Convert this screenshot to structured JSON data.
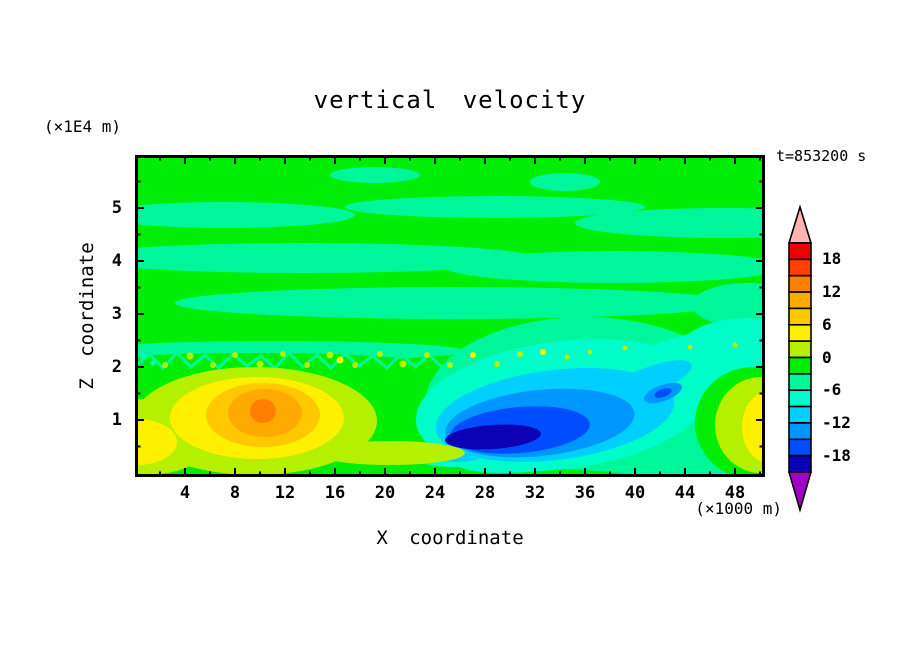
{
  "title": "vertical velocity",
  "annotations": {
    "z_axis_unit": "(×1E4 m)",
    "x_axis_unit": "(×1000 m)",
    "time_label": "t=853200 s"
  },
  "x_axis": {
    "label": "X coordinate",
    "tick_labels": [
      4,
      8,
      12,
      16,
      20,
      24,
      28,
      32,
      36,
      40,
      44,
      48
    ],
    "minor_tick_step": 2,
    "range": [
      0,
      50.4
    ]
  },
  "z_axis": {
    "label": "Z coordinate",
    "tick_labels": [
      5,
      4,
      3,
      2,
      1
    ],
    "minor_tick_step": 0.5,
    "range": [
      0,
      6.1
    ]
  },
  "colorbar": {
    "tick_labels": [
      "18",
      "12",
      "6",
      "0",
      "-6",
      "-12",
      "-18"
    ],
    "above_max_color": "#ffb4b4",
    "below_min_color": "#a000c8",
    "bands": [
      {
        "min": 18,
        "max": 21,
        "color": "#ee0000"
      },
      {
        "min": 15,
        "max": 18,
        "color": "#ff4000"
      },
      {
        "min": 12,
        "max": 15,
        "color": "#ff8000"
      },
      {
        "min": 9,
        "max": 12,
        "color": "#ffaa00"
      },
      {
        "min": 6,
        "max": 9,
        "color": "#ffc800"
      },
      {
        "min": 3,
        "max": 6,
        "color": "#fff000"
      },
      {
        "min": 0,
        "max": 3,
        "color": "#b4f000"
      },
      {
        "min": -3,
        "max": 0,
        "color": "#00ee05"
      },
      {
        "min": -6,
        "max": -3,
        "color": "#00f69b"
      },
      {
        "min": -9,
        "max": -6,
        "color": "#00fcc8"
      },
      {
        "min": -12,
        "max": -9,
        "color": "#00cfff"
      },
      {
        "min": -15,
        "max": -12,
        "color": "#0096ff"
      },
      {
        "min": -18,
        "max": -15,
        "color": "#004cff"
      },
      {
        "min": -21,
        "max": -18,
        "color": "#0c00b4"
      }
    ]
  },
  "chart_data": {
    "type": "heatmap",
    "title": "vertical velocity",
    "xlabel": "X coordinate (×1000 m)",
    "ylabel": "Z coordinate (×1E4 m)",
    "x_range": [
      0,
      50.4
    ],
    "z_range": [
      0,
      6.1
    ],
    "time_label": "t=853200 s",
    "contour_interval": 3,
    "levels": [
      -21,
      -18,
      -15,
      -12,
      -9,
      -6,
      -3,
      0,
      3,
      6,
      9,
      12,
      15,
      18,
      21
    ],
    "background": "mostly near-zero: green (-3..0) and spring-green (-6..-3) banded field",
    "features": [
      {
        "name": "updraft-core",
        "x_1000m": 10,
        "z_1e4m": 1.0,
        "peak_value": 14,
        "description": "nested warm contours: chartreuse→yellow→gold→amber→orange core"
      },
      {
        "name": "left-edge-updraft",
        "x_1000m": 1,
        "z_1e4m": 0.6,
        "peak_value": 7,
        "description": "yellow patch clipped by left axis"
      },
      {
        "name": "downdraft-core",
        "x_1000m": 29,
        "z_1e4m": 0.85,
        "peak_value": -19,
        "description": "elongated tilted blue region: turquoise→cyan→sky→blue→navy core, rising toward x=40"
      },
      {
        "name": "secondary-downdraft-spot",
        "x_1000m": 42,
        "z_1e4m": 1.6,
        "peak_value": -13,
        "description": "small detached blue spot at upper-right end of downdraft"
      },
      {
        "name": "right-edge-updraft",
        "x_1000m": 50,
        "z_1e4m": 1.0,
        "peak_value": 8,
        "description": "yellow/chartreuse blob clipped by right axis"
      },
      {
        "name": "turbulent-band",
        "x_1000m": "0-35",
        "z_1e4m": 2.0,
        "peak_value": 5,
        "description": "jagged speckled contour band with chartreuse/yellow flecks near z=2"
      }
    ]
  }
}
